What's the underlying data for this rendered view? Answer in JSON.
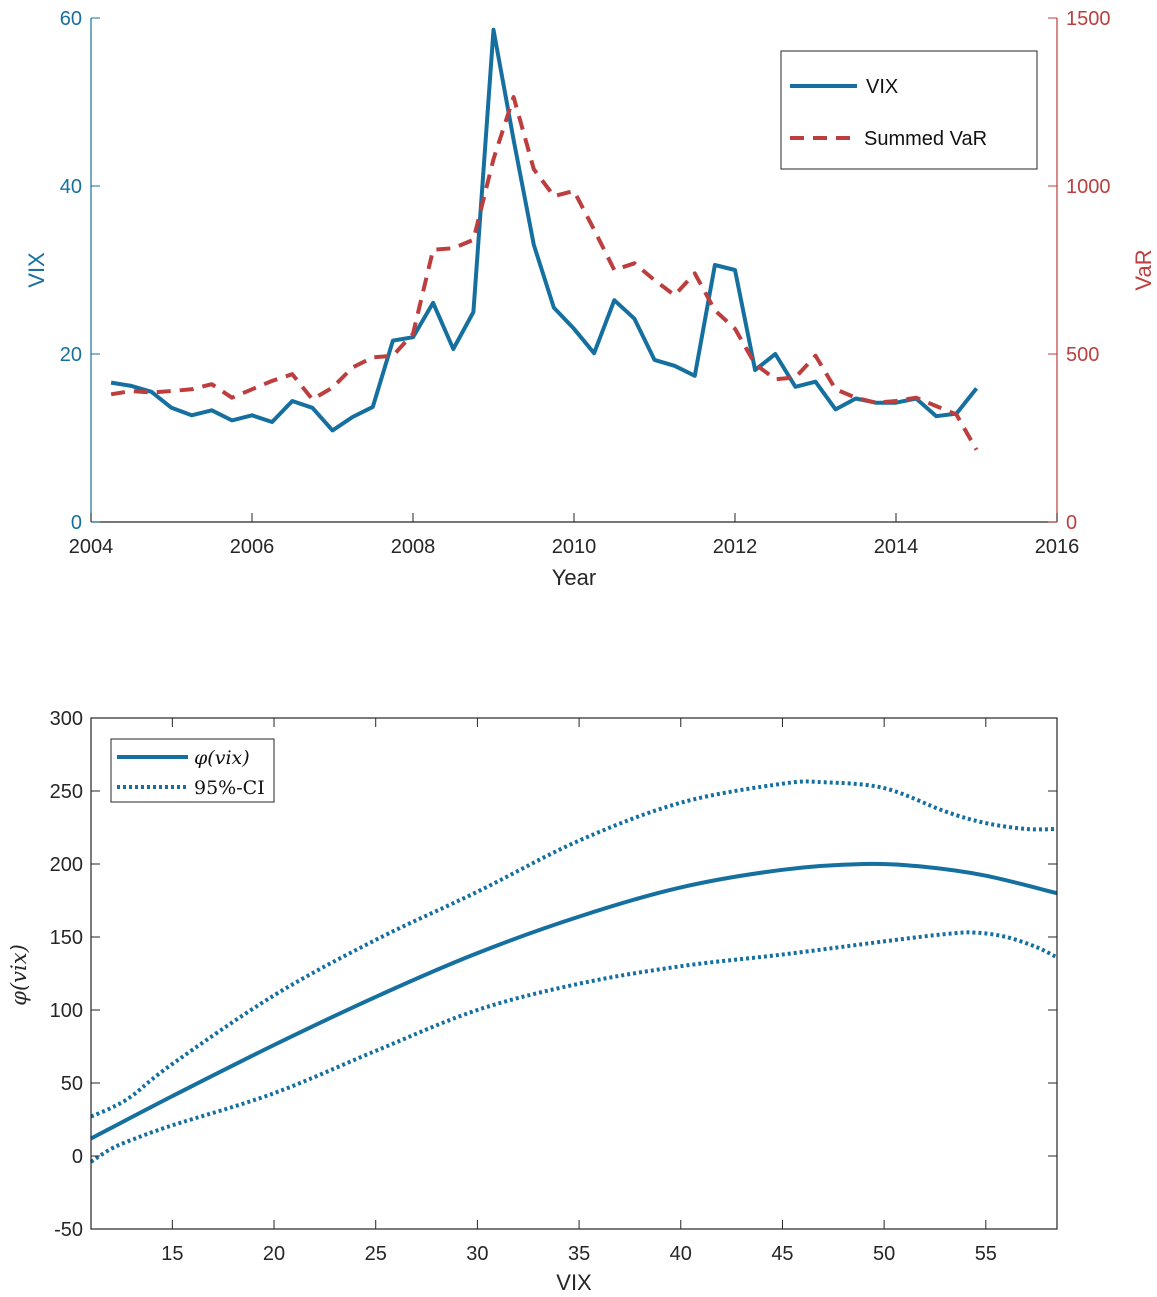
{
  "colors": {
    "vix": "#1570a0",
    "var": "#bd3e3e",
    "axis": "#262626",
    "fit": "#1570a0"
  },
  "chart_data": [
    {
      "type": "line",
      "xlabel": "Year",
      "ylabel_left": "VIX",
      "ylabel_right": "VaR",
      "xlim": [
        2004,
        2016
      ],
      "ylim_left": [
        0,
        60
      ],
      "ylim_right": [
        0,
        1500
      ],
      "xticks": [
        2004,
        2006,
        2008,
        2010,
        2012,
        2014,
        2016
      ],
      "yticks_left": [
        0,
        20,
        40,
        60
      ],
      "yticks_right": [
        0,
        500,
        1000,
        1500
      ],
      "grid": false,
      "legend_position": "top-right",
      "legend": [
        "VIX",
        "Summed VaR"
      ],
      "series": [
        {
          "name": "VIX",
          "axis": "left",
          "x": [
            2004.25,
            2004.5,
            2004.75,
            2005.0,
            2005.25,
            2005.5,
            2005.75,
            2006.0,
            2006.25,
            2006.5,
            2006.75,
            2007.0,
            2007.25,
            2007.5,
            2007.75,
            2008.0,
            2008.25,
            2008.5,
            2008.75,
            2009.0,
            2009.25,
            2009.5,
            2009.75,
            2010.0,
            2010.25,
            2010.5,
            2010.75,
            2011.0,
            2011.25,
            2011.5,
            2011.75,
            2012.0,
            2012.25,
            2012.5,
            2012.75,
            2013.0,
            2013.25,
            2013.5,
            2013.75,
            2014.0,
            2014.25,
            2014.5,
            2014.75,
            2015.0
          ],
          "values": [
            16.6,
            16.2,
            15.5,
            13.6,
            12.7,
            13.3,
            12.1,
            12.7,
            11.9,
            14.4,
            13.6,
            10.9,
            12.5,
            13.7,
            21.6,
            22.0,
            26.1,
            20.6,
            25.0,
            58.6,
            45.5,
            33.0,
            25.5,
            23.0,
            20.1,
            26.4,
            24.2,
            19.3,
            18.6,
            17.4,
            30.6,
            30.0,
            18.1,
            20.0,
            16.1,
            16.7,
            13.4,
            14.7,
            14.2,
            14.2,
            14.7,
            12.6,
            12.9,
            15.9
          ]
        },
        {
          "name": "Summed VaR",
          "axis": "right",
          "x": [
            2004.25,
            2004.5,
            2004.75,
            2005.0,
            2005.25,
            2005.5,
            2005.75,
            2006.0,
            2006.25,
            2006.5,
            2006.75,
            2007.0,
            2007.25,
            2007.5,
            2007.75,
            2008.0,
            2008.25,
            2008.5,
            2008.75,
            2009.0,
            2009.25,
            2009.5,
            2009.75,
            2010.0,
            2010.25,
            2010.5,
            2010.75,
            2011.0,
            2011.25,
            2011.5,
            2011.75,
            2012.0,
            2012.25,
            2012.5,
            2012.75,
            2013.0,
            2013.25,
            2013.5,
            2013.75,
            2014.0,
            2014.25,
            2014.5,
            2014.75,
            2015.0
          ],
          "values": [
            380,
            390,
            385,
            390,
            395,
            410,
            370,
            395,
            420,
            440,
            365,
            400,
            460,
            490,
            495,
            560,
            810,
            815,
            840,
            1080,
            1265,
            1050,
            970,
            985,
            870,
            750,
            770,
            720,
            675,
            740,
            630,
            575,
            470,
            425,
            430,
            495,
            395,
            370,
            355,
            360,
            370,
            345,
            320,
            215
          ]
        }
      ]
    },
    {
      "type": "line",
      "xlabel": "VIX",
      "ylabel": "φ(vix)",
      "xlim": [
        11,
        58.5
      ],
      "ylim": [
        -50,
        300
      ],
      "xticks": [
        15,
        20,
        25,
        30,
        35,
        40,
        45,
        50,
        55
      ],
      "yticks": [
        -50,
        0,
        50,
        100,
        150,
        200,
        250,
        300
      ],
      "grid": false,
      "legend_position": "top-left",
      "legend": [
        "φ(vix)",
        "95%-CI"
      ],
      "series": [
        {
          "name": "φ(vix)",
          "style": "solid",
          "x": [
            11,
            15,
            20,
            25,
            30,
            35,
            40,
            45,
            49,
            52,
            55,
            58.5
          ],
          "values": [
            12,
            41,
            76,
            109,
            139,
            164,
            184,
            196,
            200,
            198,
            192,
            180
          ]
        },
        {
          "name": "95%-CI",
          "style": "dotted",
          "x": [
            11,
            12,
            13,
            15,
            20,
            25,
            30,
            35,
            40,
            45,
            47,
            50,
            53,
            55,
            57,
            58.5
          ],
          "values": [
            27,
            33,
            41,
            63,
            110,
            148,
            181,
            216,
            242,
            255,
            256,
            252,
            236,
            228,
            224,
            224
          ]
        },
        {
          "name": "",
          "style": "dotted",
          "x": [
            11,
            12,
            13,
            15,
            20,
            25,
            30,
            35,
            40,
            45,
            50,
            53,
            54.5,
            56,
            57.5,
            58.5
          ],
          "values": [
            -4,
            5,
            11,
            21,
            43,
            72,
            100,
            118,
            130,
            138,
            147,
            152,
            153,
            150,
            143,
            136
          ]
        }
      ]
    }
  ]
}
